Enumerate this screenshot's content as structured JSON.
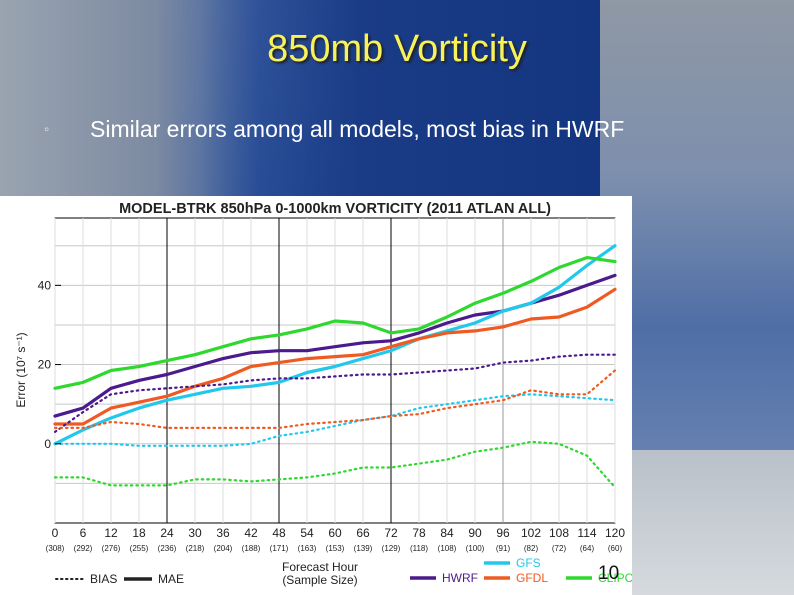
{
  "slide": {
    "title": "850mb Vorticity",
    "bullet_mark": "◦",
    "bullet": "Similar errors among all models, most bias in HWRF",
    "page_number": "10"
  },
  "chart_data": {
    "type": "line",
    "title": "MODEL-BTRK 850hPa 0-1000km VORTICITY (2011 ATLAN ALL)",
    "xlabel": "Forecast Hour",
    "xlabel2": "(Sample Size)",
    "ylabel": "Error (10⁷ s⁻¹)",
    "x": [
      0,
      6,
      12,
      18,
      24,
      30,
      36,
      42,
      48,
      54,
      60,
      66,
      72,
      78,
      84,
      90,
      96,
      102,
      108,
      114,
      120
    ],
    "x_tick_labels": [
      "0",
      "6",
      "12",
      "18",
      "24",
      "30",
      "36",
      "42",
      "48",
      "54",
      "60",
      "66",
      "72",
      "78",
      "84",
      "90",
      "96",
      "102",
      "108",
      "114",
      "120"
    ],
    "sample_sizes": [
      "(308)",
      "(292)",
      "(276)",
      "(255)",
      "(236)",
      "(218)",
      "(204)",
      "(188)",
      "(171)",
      "(163)",
      "(153)",
      "(139)",
      "(129)",
      "(118)",
      "(108)",
      "(100)",
      "(91)",
      "(82)",
      "(72)",
      "(64)",
      "(60)"
    ],
    "yticks": [
      0,
      20,
      40
    ],
    "ylim": [
      -20,
      57
    ],
    "xlim": [
      0,
      120
    ],
    "vlines": [
      24,
      48,
      72,
      96
    ],
    "grid": true,
    "series": [
      {
        "name": "HWRF",
        "stat": "MAE",
        "color": "#4b1a8c",
        "values": [
          7,
          9,
          14,
          16,
          17.5,
          19.5,
          21.5,
          23,
          23.5,
          23.5,
          24.5,
          25.5,
          26,
          28,
          30.5,
          32.5,
          33.5,
          35.5,
          37.5,
          40,
          42.5
        ]
      },
      {
        "name": "GFS",
        "stat": "MAE",
        "color": "#22c8ec",
        "values": [
          0,
          3.5,
          6.5,
          9,
          11,
          12.5,
          14,
          14.5,
          15.5,
          18,
          19.5,
          21.5,
          23.5,
          26.5,
          28.5,
          30.5,
          33.5,
          35.5,
          39.5,
          45,
          50
        ]
      },
      {
        "name": "GFDL",
        "stat": "MAE",
        "color": "#ef5a22",
        "values": [
          5,
          5,
          9,
          10.5,
          12,
          14.5,
          16.5,
          19.5,
          20.5,
          21.5,
          22,
          22.5,
          24.5,
          26.5,
          28,
          28.5,
          29.5,
          31.5,
          32,
          34.5,
          39
        ]
      },
      {
        "name": "CLIPC",
        "stat": "MAE",
        "color": "#2fd82f",
        "values": [
          14,
          15.5,
          18.5,
          19.5,
          21,
          22.5,
          24.5,
          26.5,
          27.5,
          29,
          31,
          30.5,
          28,
          29,
          32,
          35.5,
          38,
          41,
          44.5,
          47,
          46
        ]
      },
      {
        "name": "HWRF",
        "stat": "BIAS",
        "color": "#4b1a8c",
        "values": [
          3,
          8,
          12.5,
          13.5,
          14,
          14.5,
          15,
          16,
          16.5,
          16.5,
          17,
          17.5,
          17.5,
          18,
          18.5,
          19,
          20.5,
          21,
          22,
          22.5,
          22.5
        ]
      },
      {
        "name": "GFS",
        "stat": "BIAS",
        "color": "#22c8ec",
        "values": [
          0,
          0,
          0,
          -0.5,
          -0.5,
          -0.5,
          -0.5,
          0,
          2,
          3,
          4.5,
          6,
          7,
          9,
          10,
          11,
          12,
          12.5,
          12,
          11.5,
          11
        ]
      },
      {
        "name": "GFDL",
        "stat": "BIAS",
        "color": "#ef5a22",
        "values": [
          4,
          4,
          5.5,
          5,
          4,
          4,
          4,
          4,
          4,
          5,
          5.5,
          6,
          7,
          7.5,
          9,
          10,
          11,
          13.5,
          12.5,
          12.5,
          18.5
        ]
      },
      {
        "name": "CLIPC",
        "stat": "BIAS",
        "color": "#2fd82f",
        "values": [
          -8.5,
          -8.5,
          -10.5,
          -10.5,
          -10.5,
          -9,
          -9,
          -9.5,
          -9,
          -8.5,
          -7.5,
          -6,
          -6,
          -5,
          -4,
          -2,
          -1,
          0.5,
          0,
          -3,
          -11
        ]
      }
    ],
    "legend": {
      "position": "bottom",
      "styles": [
        {
          "label": "BIAS",
          "dash": "dotted"
        },
        {
          "label": "MAE",
          "dash": "solid"
        }
      ],
      "models": [
        {
          "label": "HWRF",
          "color": "#4b1a8c"
        },
        {
          "label": "GFS",
          "color": "#22c8ec"
        },
        {
          "label": "GFDL",
          "color": "#ef5a22"
        },
        {
          "label": "CLIPC",
          "color": "#2fd82f"
        }
      ]
    }
  }
}
